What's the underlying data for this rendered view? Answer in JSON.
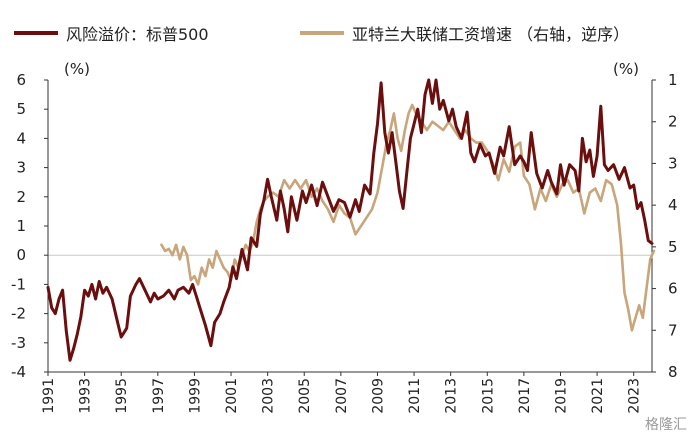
{
  "legend": {
    "series1": "风险溢价：标普500",
    "series2": "亚特兰大联储工资增速 （右轴，逆序）"
  },
  "left_unit": "(%)",
  "right_unit": "(%)",
  "watermark": "格隆汇",
  "colors": {
    "series1": "#6b0e0e",
    "series2": "#c8a57a",
    "axis": "#333333"
  },
  "chart_data": {
    "type": "line",
    "xlim": [
      1991,
      2024
    ],
    "x_ticks": [
      "1991",
      "1993",
      "1995",
      "1997",
      "1999",
      "2001",
      "2003",
      "2005",
      "2007",
      "2009",
      "2011",
      "2013",
      "2015",
      "2017",
      "2019",
      "2021",
      "2023"
    ],
    "y_left": {
      "ylim": [
        -4,
        6
      ],
      "ticks": [
        "-4",
        "-3",
        "-2",
        "-1",
        "0",
        "1",
        "2",
        "3",
        "4",
        "5",
        "6"
      ]
    },
    "y_right": {
      "ylim": [
        1,
        8
      ],
      "inverted": true,
      "ticks": [
        "1",
        "2",
        "3",
        "4",
        "5",
        "6",
        "7",
        "8"
      ]
    },
    "series": [
      {
        "name": "风险溢价：标普500",
        "axis": "left",
        "points": [
          [
            1991.0,
            -1.1
          ],
          [
            1991.2,
            -1.8
          ],
          [
            1991.4,
            -2.0
          ],
          [
            1991.6,
            -1.5
          ],
          [
            1991.8,
            -1.2
          ],
          [
            1992.0,
            -2.6
          ],
          [
            1992.2,
            -3.6
          ],
          [
            1992.4,
            -3.2
          ],
          [
            1992.6,
            -2.7
          ],
          [
            1992.8,
            -2.1
          ],
          [
            1993.0,
            -1.2
          ],
          [
            1993.2,
            -1.4
          ],
          [
            1993.4,
            -1.0
          ],
          [
            1993.6,
            -1.5
          ],
          [
            1993.8,
            -0.9
          ],
          [
            1994.0,
            -1.3
          ],
          [
            1994.2,
            -1.1
          ],
          [
            1994.5,
            -1.5
          ],
          [
            1994.8,
            -2.3
          ],
          [
            1995.0,
            -2.8
          ],
          [
            1995.3,
            -2.5
          ],
          [
            1995.5,
            -1.4
          ],
          [
            1995.8,
            -1.0
          ],
          [
            1996.0,
            -0.8
          ],
          [
            1996.3,
            -1.2
          ],
          [
            1996.6,
            -1.6
          ],
          [
            1996.8,
            -1.3
          ],
          [
            1997.0,
            -1.5
          ],
          [
            1997.3,
            -1.4
          ],
          [
            1997.6,
            -1.2
          ],
          [
            1997.9,
            -1.5
          ],
          [
            1998.1,
            -1.2
          ],
          [
            1998.4,
            -1.1
          ],
          [
            1998.7,
            -1.3
          ],
          [
            1998.9,
            -1.0
          ],
          [
            1999.1,
            -1.4
          ],
          [
            1999.3,
            -1.8
          ],
          [
            1999.6,
            -2.4
          ],
          [
            1999.9,
            -3.1
          ],
          [
            2000.1,
            -2.3
          ],
          [
            2000.4,
            -2.0
          ],
          [
            2000.6,
            -1.6
          ],
          [
            2000.9,
            -1.1
          ],
          [
            2001.1,
            -0.4
          ],
          [
            2001.3,
            -0.8
          ],
          [
            2001.6,
            0.2
          ],
          [
            2001.9,
            -0.5
          ],
          [
            2002.1,
            0.6
          ],
          [
            2002.4,
            0.3
          ],
          [
            2002.6,
            1.4
          ],
          [
            2002.8,
            1.9
          ],
          [
            2003.0,
            2.6
          ],
          [
            2003.2,
            2.0
          ],
          [
            2003.5,
            1.2
          ],
          [
            2003.7,
            2.2
          ],
          [
            2003.9,
            1.6
          ],
          [
            2004.1,
            0.8
          ],
          [
            2004.3,
            2.0
          ],
          [
            2004.6,
            1.2
          ],
          [
            2004.9,
            2.2
          ],
          [
            2005.1,
            1.8
          ],
          [
            2005.4,
            2.4
          ],
          [
            2005.7,
            1.7
          ],
          [
            2006.0,
            2.5
          ],
          [
            2006.3,
            2.0
          ],
          [
            2006.6,
            1.5
          ],
          [
            2006.9,
            1.9
          ],
          [
            2007.2,
            1.8
          ],
          [
            2007.5,
            1.3
          ],
          [
            2007.8,
            1.9
          ],
          [
            2008.0,
            1.5
          ],
          [
            2008.3,
            2.4
          ],
          [
            2008.6,
            2.1
          ],
          [
            2008.8,
            3.5
          ],
          [
            2009.0,
            4.5
          ],
          [
            2009.2,
            5.9
          ],
          [
            2009.4,
            4.2
          ],
          [
            2009.6,
            3.5
          ],
          [
            2009.8,
            4.2
          ],
          [
            2010.0,
            3.2
          ],
          [
            2010.2,
            2.2
          ],
          [
            2010.4,
            1.6
          ],
          [
            2010.6,
            2.8
          ],
          [
            2010.8,
            4.0
          ],
          [
            2011.0,
            4.5
          ],
          [
            2011.2,
            5.0
          ],
          [
            2011.4,
            4.2
          ],
          [
            2011.6,
            5.5
          ],
          [
            2011.8,
            6.0
          ],
          [
            2012.0,
            5.2
          ],
          [
            2012.2,
            6.0
          ],
          [
            2012.4,
            5.0
          ],
          [
            2012.6,
            5.3
          ],
          [
            2012.9,
            4.6
          ],
          [
            2013.1,
            5.0
          ],
          [
            2013.3,
            4.4
          ],
          [
            2013.6,
            4.0
          ],
          [
            2013.9,
            4.9
          ],
          [
            2014.1,
            3.5
          ],
          [
            2014.3,
            3.2
          ],
          [
            2014.6,
            3.8
          ],
          [
            2014.9,
            3.4
          ],
          [
            2015.1,
            3.5
          ],
          [
            2015.4,
            2.8
          ],
          [
            2015.7,
            3.7
          ],
          [
            2015.9,
            3.4
          ],
          [
            2016.2,
            4.4
          ],
          [
            2016.5,
            3.1
          ],
          [
            2016.8,
            3.4
          ],
          [
            2017.0,
            3.2
          ],
          [
            2017.2,
            2.9
          ],
          [
            2017.4,
            4.2
          ],
          [
            2017.7,
            2.8
          ],
          [
            2018.0,
            2.3
          ],
          [
            2018.3,
            2.9
          ],
          [
            2018.5,
            2.5
          ],
          [
            2018.8,
            2.1
          ],
          [
            2019.0,
            3.1
          ],
          [
            2019.2,
            2.4
          ],
          [
            2019.5,
            3.1
          ],
          [
            2019.8,
            2.9
          ],
          [
            2020.0,
            2.2
          ],
          [
            2020.2,
            4.0
          ],
          [
            2020.4,
            3.2
          ],
          [
            2020.6,
            3.6
          ],
          [
            2020.8,
            2.7
          ],
          [
            2021.0,
            3.4
          ],
          [
            2021.2,
            5.1
          ],
          [
            2021.4,
            3.1
          ],
          [
            2021.6,
            2.9
          ],
          [
            2021.9,
            3.1
          ],
          [
            2022.2,
            2.6
          ],
          [
            2022.5,
            3.0
          ],
          [
            2022.8,
            2.3
          ],
          [
            2023.0,
            2.4
          ],
          [
            2023.2,
            1.6
          ],
          [
            2023.4,
            1.8
          ],
          [
            2023.6,
            1.2
          ],
          [
            2023.8,
            0.5
          ],
          [
            2024.0,
            0.4
          ]
        ]
      },
      {
        "name": "亚特兰大联储工资增速 （右轴，逆序）",
        "axis": "right",
        "points": [
          [
            1997.2,
            4.95
          ],
          [
            1997.4,
            5.1
          ],
          [
            1997.6,
            5.05
          ],
          [
            1997.8,
            5.2
          ],
          [
            1998.0,
            4.95
          ],
          [
            1998.2,
            5.3
          ],
          [
            1998.4,
            5.0
          ],
          [
            1998.6,
            5.2
          ],
          [
            1998.8,
            5.8
          ],
          [
            1999.0,
            5.7
          ],
          [
            1999.2,
            5.9
          ],
          [
            1999.4,
            5.5
          ],
          [
            1999.6,
            5.7
          ],
          [
            1999.8,
            5.3
          ],
          [
            2000.0,
            5.5
          ],
          [
            2000.2,
            5.1
          ],
          [
            2000.4,
            5.3
          ],
          [
            2000.6,
            5.5
          ],
          [
            2000.8,
            5.6
          ],
          [
            2001.0,
            5.8
          ],
          [
            2001.2,
            5.3
          ],
          [
            2001.4,
            5.5
          ],
          [
            2001.6,
            5.2
          ],
          [
            2001.8,
            4.95
          ],
          [
            2002.0,
            5.1
          ],
          [
            2002.2,
            4.9
          ],
          [
            2002.4,
            4.4
          ],
          [
            2002.6,
            4.1
          ],
          [
            2002.8,
            3.9
          ],
          [
            2003.0,
            3.8
          ],
          [
            2003.3,
            3.7
          ],
          [
            2003.6,
            3.8
          ],
          [
            2003.9,
            3.4
          ],
          [
            2004.2,
            3.6
          ],
          [
            2004.5,
            3.4
          ],
          [
            2004.8,
            3.6
          ],
          [
            2005.1,
            3.4
          ],
          [
            2005.4,
            3.8
          ],
          [
            2005.7,
            3.6
          ],
          [
            2006.0,
            3.9
          ],
          [
            2006.3,
            4.1
          ],
          [
            2006.6,
            4.4
          ],
          [
            2006.9,
            4.0
          ],
          [
            2007.2,
            4.2
          ],
          [
            2007.5,
            4.3
          ],
          [
            2007.8,
            4.7
          ],
          [
            2008.1,
            4.5
          ],
          [
            2008.4,
            4.3
          ],
          [
            2008.7,
            4.1
          ],
          [
            2009.0,
            3.7
          ],
          [
            2009.3,
            3.0
          ],
          [
            2009.5,
            2.5
          ],
          [
            2009.7,
            2.2
          ],
          [
            2009.9,
            1.8
          ],
          [
            2010.1,
            2.4
          ],
          [
            2010.3,
            2.7
          ],
          [
            2010.5,
            2.2
          ],
          [
            2010.7,
            1.8
          ],
          [
            2010.9,
            1.6
          ],
          [
            2011.1,
            1.8
          ],
          [
            2011.4,
            2.0
          ],
          [
            2011.7,
            2.2
          ],
          [
            2012.0,
            2.0
          ],
          [
            2012.3,
            2.1
          ],
          [
            2012.6,
            2.2
          ],
          [
            2012.9,
            2.0
          ],
          [
            2013.2,
            2.2
          ],
          [
            2013.5,
            2.4
          ],
          [
            2013.8,
            2.2
          ],
          [
            2014.1,
            2.4
          ],
          [
            2014.4,
            2.5
          ],
          [
            2014.7,
            2.5
          ],
          [
            2015.0,
            2.7
          ],
          [
            2015.3,
            3.0
          ],
          [
            2015.6,
            3.4
          ],
          [
            2015.9,
            2.9
          ],
          [
            2016.2,
            3.2
          ],
          [
            2016.5,
            2.6
          ],
          [
            2016.8,
            2.5
          ],
          [
            2017.0,
            3.3
          ],
          [
            2017.3,
            3.5
          ],
          [
            2017.6,
            4.1
          ],
          [
            2017.9,
            3.6
          ],
          [
            2018.2,
            3.9
          ],
          [
            2018.5,
            3.5
          ],
          [
            2018.8,
            3.8
          ],
          [
            2019.1,
            3.5
          ],
          [
            2019.4,
            3.4
          ],
          [
            2019.7,
            3.7
          ],
          [
            2020.0,
            3.6
          ],
          [
            2020.3,
            4.2
          ],
          [
            2020.6,
            3.7
          ],
          [
            2020.9,
            3.6
          ],
          [
            2021.2,
            3.9
          ],
          [
            2021.5,
            3.4
          ],
          [
            2021.8,
            3.5
          ],
          [
            2022.1,
            4.0
          ],
          [
            2022.3,
            4.9
          ],
          [
            2022.5,
            6.1
          ],
          [
            2022.7,
            6.5
          ],
          [
            2022.9,
            7.0
          ],
          [
            2023.1,
            6.7
          ],
          [
            2023.3,
            6.4
          ],
          [
            2023.5,
            6.7
          ],
          [
            2023.7,
            6.0
          ],
          [
            2023.9,
            5.3
          ],
          [
            2024.1,
            5.1
          ]
        ]
      }
    ]
  }
}
